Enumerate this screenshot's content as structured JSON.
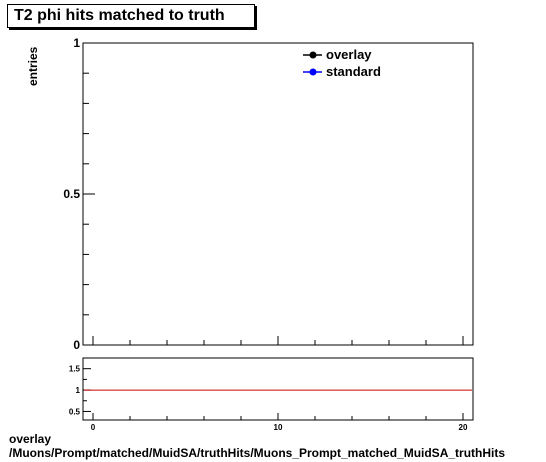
{
  "title": "T2 phi hits matched to truth",
  "footer": {
    "line1": "overlay",
    "line2": "/Muons/Prompt/matched/MuidSA/truthHits/Muons_Prompt_matched_MuidSA_truthHits"
  },
  "colors": {
    "overlay": "#000000",
    "standard": "#0000ff",
    "ratio_line": "#cc0000"
  },
  "chart_data": [
    {
      "type": "line",
      "ylabel": "entries",
      "xlim": [
        0,
        20
      ],
      "ylim": [
        0,
        1
      ],
      "y_ticks": [
        "0",
        "0.5",
        "1"
      ],
      "legend_position": "top-right",
      "series": [
        {
          "name": "overlay",
          "x": [],
          "y": []
        },
        {
          "name": "standard",
          "x": [],
          "y": []
        }
      ]
    },
    {
      "type": "line",
      "xlim": [
        0,
        20
      ],
      "ylim": [
        0.3,
        1.75
      ],
      "x_ticks": [
        "0",
        "10",
        "20"
      ],
      "y_ticks": [
        "0.5",
        "1",
        "1.5"
      ],
      "reference_line": 1,
      "series": [
        {
          "x": [
            0,
            20.5
          ],
          "y": [
            1,
            1
          ]
        }
      ]
    }
  ]
}
